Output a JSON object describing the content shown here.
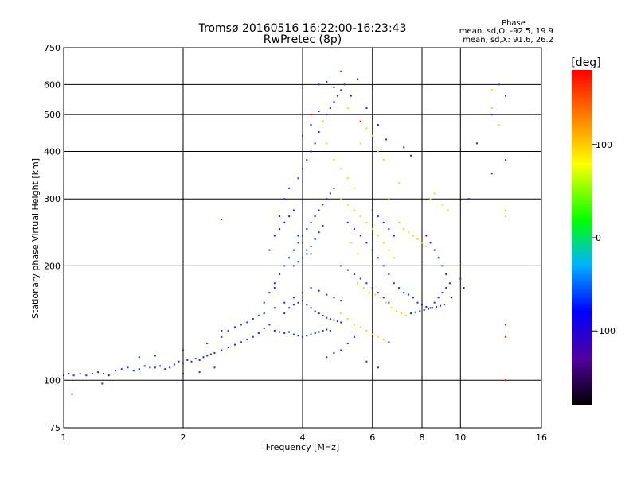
{
  "chart_data": {
    "type": "scatter",
    "title": "Tromsø 20160516 16:22:00-16:23:43",
    "subtitle": "RwPretec (8p)",
    "xlabel": "Frequency [MHz]",
    "ylabel": "Stationary phase Virtual Height [km]",
    "x_scale": "log",
    "y_scale": "log",
    "xlim": [
      1,
      16
    ],
    "ylim": [
      75,
      750
    ],
    "x_ticks": [
      1,
      2,
      4,
      6,
      8,
      10,
      16
    ],
    "x_tick_labels": [
      "1",
      "2",
      "4",
      "6",
      "8",
      "10",
      "16"
    ],
    "y_ticks": [
      75,
      100,
      200,
      300,
      400,
      500,
      600,
      750
    ],
    "y_tick_labels": [
      "75",
      "100",
      "200",
      "300",
      "400",
      "500",
      "600",
      "750"
    ],
    "grid": true,
    "stats": {
      "header": "Phase",
      "o_mode": "mean, sd,O: -92.5, 19.9",
      "x_mode": "mean, sd,X:  91.6, 26.2"
    },
    "colorbar": {
      "label": "[deg]",
      "range": [
        -180,
        180
      ],
      "ticks": [
        100,
        0,
        -100
      ],
      "tick_labels": [
        "100",
        "0",
        "-100"
      ],
      "colormap": [
        "#000000",
        "#5000a0",
        "#0000ff",
        "#00b4ff",
        "#00ff00",
        "#ffff00",
        "#ff8000",
        "#ff0000"
      ]
    },
    "series": [
      {
        "mode": "O",
        "phase": -92.5,
        "color": "#1a2bf0",
        "points": [
          [
            1.0,
            103
          ],
          [
            1.03,
            104
          ],
          [
            1.06,
            103
          ],
          [
            1.1,
            104
          ],
          [
            1.14,
            103
          ],
          [
            1.18,
            104
          ],
          [
            1.22,
            105
          ],
          [
            1.26,
            104
          ],
          [
            1.3,
            103
          ],
          [
            1.35,
            106
          ],
          [
            1.4,
            107
          ],
          [
            1.45,
            108
          ],
          [
            1.5,
            106
          ],
          [
            1.55,
            107
          ],
          [
            1.6,
            109
          ],
          [
            1.65,
            108
          ],
          [
            1.7,
            108
          ],
          [
            1.75,
            109
          ],
          [
            1.8,
            107
          ],
          [
            1.85,
            108
          ],
          [
            1.9,
            110
          ],
          [
            1.95,
            112
          ],
          [
            2.0,
            111
          ],
          [
            2.05,
            113
          ],
          [
            2.1,
            112
          ],
          [
            2.15,
            114
          ],
          [
            2.2,
            113
          ],
          [
            2.25,
            115
          ],
          [
            2.3,
            116
          ],
          [
            2.35,
            117
          ],
          [
            2.4,
            118
          ],
          [
            2.5,
            120
          ],
          [
            2.6,
            122
          ],
          [
            2.7,
            124
          ],
          [
            2.8,
            126
          ],
          [
            2.9,
            128
          ],
          [
            3.0,
            130
          ],
          [
            3.1,
            133
          ],
          [
            3.2,
            137
          ],
          [
            3.3,
            140
          ],
          [
            3.4,
            135
          ],
          [
            3.5,
            134
          ],
          [
            3.6,
            133
          ],
          [
            3.7,
            134
          ],
          [
            3.8,
            132
          ],
          [
            3.9,
            131
          ],
          [
            4.0,
            130
          ],
          [
            4.1,
            131
          ],
          [
            4.2,
            132
          ],
          [
            4.3,
            133
          ],
          [
            4.4,
            134
          ],
          [
            4.5,
            135
          ],
          [
            4.6,
            136
          ],
          [
            4.7,
            135
          ],
          [
            2.8,
            140
          ],
          [
            3.0,
            145
          ],
          [
            3.2,
            150
          ],
          [
            3.4,
            155
          ],
          [
            3.6,
            160
          ],
          [
            3.8,
            165
          ],
          [
            4.0,
            170
          ],
          [
            4.2,
            175
          ],
          [
            4.4,
            172
          ],
          [
            4.6,
            168
          ],
          [
            4.8,
            165
          ],
          [
            5.0,
            162
          ],
          [
            3.4,
            180
          ],
          [
            3.5,
            190
          ],
          [
            3.6,
            200
          ],
          [
            3.7,
            210
          ],
          [
            3.8,
            220
          ],
          [
            3.9,
            230
          ],
          [
            4.0,
            240
          ],
          [
            4.1,
            250
          ],
          [
            4.2,
            260
          ],
          [
            4.3,
            270
          ],
          [
            4.4,
            280
          ],
          [
            4.5,
            290
          ],
          [
            4.6,
            300
          ],
          [
            4.7,
            310
          ],
          [
            4.8,
            320
          ],
          [
            3.5,
            250
          ],
          [
            3.6,
            260
          ],
          [
            3.7,
            270
          ],
          [
            3.8,
            280
          ],
          [
            3.9,
            240
          ],
          [
            4.0,
            230
          ],
          [
            4.1,
            220
          ],
          [
            4.2,
            215
          ],
          [
            3.6,
            150
          ],
          [
            3.7,
            155
          ],
          [
            3.8,
            158
          ],
          [
            3.9,
            160
          ],
          [
            4.0,
            162
          ],
          [
            4.1,
            158
          ],
          [
            4.2,
            155
          ],
          [
            4.3,
            152
          ],
          [
            4.4,
            150
          ],
          [
            4.5,
            148
          ],
          [
            4.6,
            146
          ],
          [
            4.7,
            145
          ],
          [
            4.8,
            144
          ],
          [
            4.9,
            143
          ],
          [
            5.0,
            142
          ],
          [
            3.9,
            340
          ],
          [
            4.0,
            360
          ],
          [
            4.1,
            380
          ],
          [
            4.2,
            400
          ],
          [
            4.3,
            420
          ],
          [
            4.4,
            450
          ],
          [
            4.5,
            480
          ],
          [
            4.6,
            500
          ],
          [
            4.7,
            520
          ],
          [
            4.8,
            540
          ],
          [
            4.9,
            560
          ],
          [
            5.0,
            580
          ],
          [
            5.1,
            600
          ],
          [
            4.4,
            600
          ],
          [
            4.6,
            610
          ],
          [
            4.8,
            590
          ],
          [
            4.0,
            440
          ],
          [
            4.2,
            470
          ],
          [
            4.4,
            510
          ],
          [
            3.8,
            200
          ],
          [
            3.9,
            205
          ],
          [
            4.0,
            210
          ],
          [
            4.1,
            215
          ],
          [
            4.2,
            225
          ],
          [
            4.3,
            235
          ],
          [
            4.4,
            245
          ],
          [
            4.5,
            255
          ],
          [
            5.2,
            260
          ],
          [
            5.4,
            250
          ],
          [
            5.6,
            240
          ],
          [
            5.8,
            230
          ],
          [
            6.0,
            220
          ],
          [
            6.2,
            210
          ],
          [
            6.4,
            200
          ],
          [
            6.6,
            190
          ],
          [
            6.8,
            180
          ],
          [
            7.0,
            175
          ],
          [
            7.2,
            170
          ],
          [
            7.4,
            168
          ],
          [
            7.6,
            165
          ],
          [
            7.8,
            160
          ],
          [
            8.0,
            158
          ],
          [
            8.2,
            156
          ],
          [
            8.4,
            155
          ],
          [
            8.6,
            160
          ],
          [
            8.8,
            165
          ],
          [
            9.0,
            170
          ],
          [
            9.2,
            175
          ],
          [
            9.4,
            180
          ],
          [
            7.5,
            150
          ],
          [
            7.7,
            151
          ],
          [
            7.9,
            152
          ],
          [
            8.1,
            153
          ],
          [
            8.3,
            154
          ],
          [
            8.5,
            155
          ],
          [
            8.7,
            156
          ],
          [
            8.9,
            157
          ],
          [
            9.1,
            158
          ],
          [
            8.2,
            240
          ],
          [
            8.4,
            230
          ],
          [
            8.6,
            220
          ],
          [
            8.8,
            210
          ],
          [
            9.0,
            200
          ],
          [
            9.2,
            190
          ],
          [
            6.0,
            280
          ],
          [
            6.2,
            270
          ],
          [
            6.4,
            260
          ],
          [
            6.6,
            250
          ],
          [
            6.8,
            240
          ],
          [
            5.0,
            200
          ],
          [
            5.2,
            195
          ],
          [
            5.4,
            190
          ],
          [
            5.6,
            185
          ],
          [
            5.8,
            180
          ],
          [
            6.0,
            175
          ],
          [
            6.2,
            170
          ],
          [
            6.4,
            165
          ],
          [
            6.6,
            160
          ],
          [
            12.0,
            500
          ],
          [
            12.5,
            600
          ],
          [
            12.0,
            350
          ],
          [
            13.0,
            560
          ],
          [
            13.0,
            380
          ],
          [
            11.0,
            420
          ],
          [
            10.5,
            300
          ],
          [
            5.5,
            620
          ],
          [
            5.3,
            560
          ],
          [
            5.8,
            520
          ],
          [
            6.2,
            470
          ],
          [
            6.5,
            430
          ],
          [
            7.2,
            410
          ],
          [
            7.5,
            390
          ],
          [
            3.3,
            220
          ],
          [
            3.4,
            240
          ],
          [
            3.5,
            270
          ],
          [
            3.6,
            300
          ],
          [
            3.7,
            320
          ],
          [
            2.5,
            130
          ],
          [
            2.6,
            135
          ],
          [
            2.7,
            138
          ],
          [
            2.9,
            142
          ],
          [
            3.1,
            148
          ],
          [
            3.2,
            160
          ],
          [
            3.3,
            170
          ],
          [
            3.4,
            175
          ],
          [
            1.25,
            98
          ],
          [
            1.05,
            92
          ],
          [
            1.55,
            115
          ],
          [
            1.7,
            116
          ],
          [
            2.0,
            104
          ],
          [
            2.2,
            105
          ],
          [
            2.4,
            108
          ],
          [
            2.0,
            120
          ],
          [
            2.3,
            125
          ],
          [
            2.5,
            135
          ],
          [
            4.6,
            115
          ],
          [
            4.8,
            118
          ],
          [
            5.0,
            120
          ],
          [
            5.2,
            125
          ],
          [
            5.4,
            130
          ],
          [
            5.8,
            112
          ],
          [
            6.2,
            108
          ],
          [
            6.6,
            126
          ],
          [
            10.0,
            185
          ],
          [
            10.2,
            175
          ],
          [
            9.5,
            165
          ]
        ]
      },
      {
        "mode": "X",
        "phase": 91.6,
        "color": "#e8e000",
        "points": [
          [
            5.0,
            300
          ],
          [
            5.2,
            290
          ],
          [
            5.4,
            280
          ],
          [
            5.6,
            270
          ],
          [
            5.8,
            260
          ],
          [
            6.0,
            250
          ],
          [
            6.2,
            240
          ],
          [
            6.4,
            230
          ],
          [
            6.6,
            220
          ],
          [
            6.8,
            210
          ],
          [
            5.5,
            180
          ],
          [
            5.7,
            175
          ],
          [
            5.9,
            170
          ],
          [
            6.1,
            168
          ],
          [
            6.3,
            165
          ],
          [
            6.5,
            160
          ],
          [
            6.7,
            155
          ],
          [
            6.9,
            152
          ],
          [
            7.1,
            150
          ],
          [
            7.3,
            148
          ],
          [
            5.0,
            150
          ],
          [
            5.2,
            145
          ],
          [
            5.4,
            140
          ],
          [
            5.6,
            138
          ],
          [
            5.8,
            135
          ],
          [
            6.0,
            132
          ],
          [
            6.2,
            130
          ],
          [
            6.4,
            128
          ],
          [
            4.8,
            380
          ],
          [
            5.0,
            360
          ],
          [
            5.2,
            340
          ],
          [
            5.4,
            320
          ],
          [
            5.6,
            420
          ],
          [
            5.8,
            460
          ],
          [
            6.0,
            440
          ],
          [
            6.2,
            400
          ],
          [
            6.4,
            380
          ],
          [
            7.0,
            260
          ],
          [
            7.2,
            250
          ],
          [
            7.4,
            245
          ],
          [
            7.6,
            240
          ],
          [
            7.8,
            235
          ],
          [
            8.0,
            230
          ],
          [
            8.2,
            225
          ],
          [
            8.4,
            300
          ],
          [
            8.6,
            310
          ],
          [
            9.0,
            290
          ],
          [
            9.3,
            280
          ],
          [
            12.0,
            580
          ],
          [
            12.0,
            520
          ],
          [
            12.5,
            470
          ],
          [
            13.0,
            270
          ],
          [
            13.0,
            280
          ],
          [
            4.5,
            480
          ],
          [
            4.6,
            420
          ],
          [
            5.2,
            520
          ],
          [
            6.6,
            300
          ],
          [
            7.0,
            330
          ],
          [
            5.3,
            230
          ],
          [
            5.5,
            215
          ]
        ]
      },
      {
        "mode": "X-red",
        "phase": 170,
        "color": "#e01000",
        "points": [
          [
            5.0,
            650
          ],
          [
            13.0,
            140
          ],
          [
            13.0,
            130
          ],
          [
            13.0,
            100
          ],
          [
            2.5,
            265
          ],
          [
            4.2,
            500
          ],
          [
            5.6,
            480
          ]
        ]
      }
    ]
  }
}
